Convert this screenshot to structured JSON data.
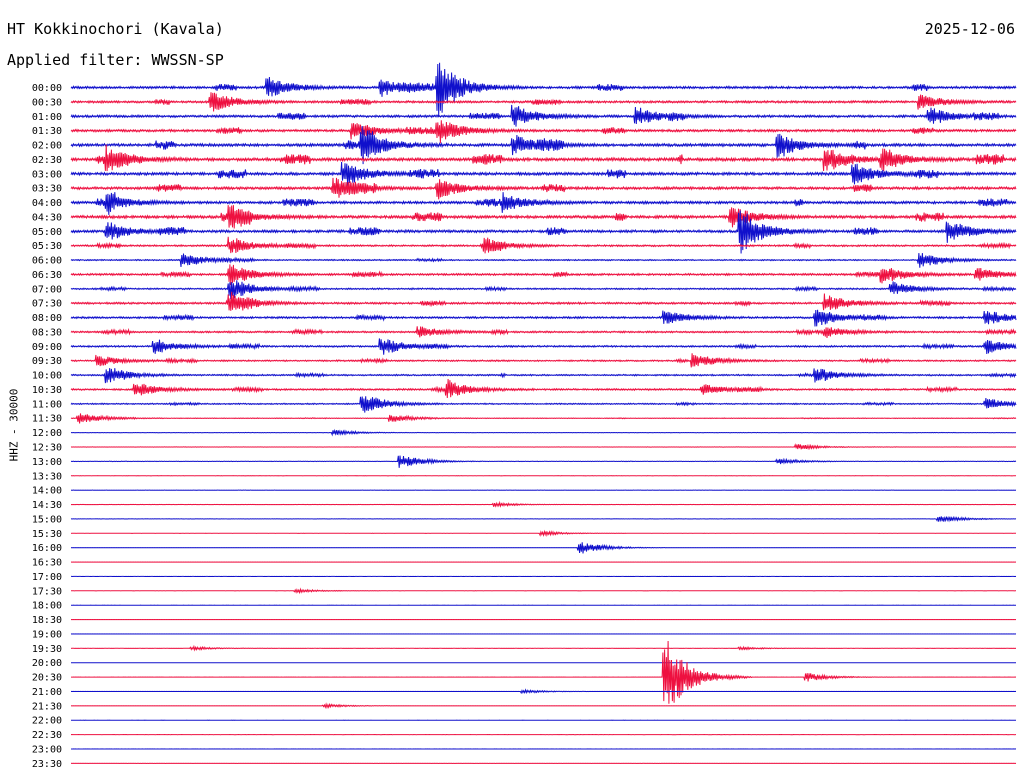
{
  "header": {
    "station": "HT Kokkinochori (Kavala)",
    "date": "2025-12-06",
    "filter": "Applied filter: WWSSN-SP",
    "channel": "HHZ - 30000"
  },
  "colors": {
    "even_rows": "#1010cc",
    "odd_rows": "#ee1040",
    "text": "#000000"
  },
  "chart_data": {
    "type": "line",
    "title": "HT Kokkinochori (Kavala)",
    "subtitle": "2025-12-06",
    "ylabel": "HHZ - 30000",
    "xlabel": "",
    "grid": false,
    "legend": "none",
    "rows": [
      {
        "time": "00:00",
        "level": 0.55,
        "events": [
          {
            "pos": 0.39,
            "amp": 1.6
          },
          {
            "pos": 0.21,
            "amp": 0.6
          },
          {
            "pos": 0.33,
            "amp": 0.5
          }
        ]
      },
      {
        "time": "00:30",
        "level": 0.5,
        "events": [
          {
            "pos": 0.15,
            "amp": 0.6
          },
          {
            "pos": 0.9,
            "amp": 0.4
          }
        ]
      },
      {
        "time": "01:00",
        "level": 0.55,
        "events": [
          {
            "pos": 0.47,
            "amp": 0.6
          },
          {
            "pos": 0.6,
            "amp": 0.5
          },
          {
            "pos": 0.91,
            "amp": 0.5
          }
        ]
      },
      {
        "time": "01:30",
        "level": 0.55,
        "events": [
          {
            "pos": 0.39,
            "amp": 0.7
          },
          {
            "pos": 0.3,
            "amp": 0.5
          }
        ]
      },
      {
        "time": "02:00",
        "level": 0.65,
        "events": [
          {
            "pos": 0.31,
            "amp": 0.9
          },
          {
            "pos": 0.47,
            "amp": 0.6
          },
          {
            "pos": 0.75,
            "amp": 0.7
          }
        ]
      },
      {
        "time": "02:30",
        "level": 0.7,
        "events": [
          {
            "pos": 0.04,
            "amp": 0.7
          },
          {
            "pos": 0.8,
            "amp": 0.7
          },
          {
            "pos": 0.86,
            "amp": 0.6
          }
        ]
      },
      {
        "time": "03:00",
        "level": 0.65,
        "events": [
          {
            "pos": 0.29,
            "amp": 0.7
          },
          {
            "pos": 0.83,
            "amp": 0.6
          }
        ]
      },
      {
        "time": "03:30",
        "level": 0.6,
        "events": [
          {
            "pos": 0.28,
            "amp": 0.6
          },
          {
            "pos": 0.39,
            "amp": 0.6
          }
        ]
      },
      {
        "time": "04:00",
        "level": 0.6,
        "events": [
          {
            "pos": 0.04,
            "amp": 0.5
          },
          {
            "pos": 0.46,
            "amp": 0.5
          }
        ]
      },
      {
        "time": "04:30",
        "level": 0.65,
        "events": [
          {
            "pos": 0.17,
            "amp": 0.6
          },
          {
            "pos": 0.7,
            "amp": 0.6
          }
        ]
      },
      {
        "time": "05:00",
        "level": 0.6,
        "events": [
          {
            "pos": 0.71,
            "amp": 1.2
          },
          {
            "pos": 0.93,
            "amp": 0.6
          },
          {
            "pos": 0.04,
            "amp": 0.5
          }
        ]
      },
      {
        "time": "05:30",
        "level": 0.4,
        "events": [
          {
            "pos": 0.17,
            "amp": 0.5
          },
          {
            "pos": 0.44,
            "amp": 0.4
          }
        ]
      },
      {
        "time": "06:00",
        "level": 0.3,
        "events": [
          {
            "pos": 0.12,
            "amp": 0.4
          },
          {
            "pos": 0.9,
            "amp": 0.4
          }
        ]
      },
      {
        "time": "06:30",
        "level": 0.45,
        "events": [
          {
            "pos": 0.17,
            "amp": 0.6
          },
          {
            "pos": 0.86,
            "amp": 0.5
          },
          {
            "pos": 0.96,
            "amp": 0.4
          }
        ]
      },
      {
        "time": "07:00",
        "level": 0.35,
        "events": [
          {
            "pos": 0.17,
            "amp": 0.6
          },
          {
            "pos": 0.87,
            "amp": 0.4
          }
        ]
      },
      {
        "time": "07:30",
        "level": 0.45,
        "events": [
          {
            "pos": 0.17,
            "amp": 0.6
          },
          {
            "pos": 0.8,
            "amp": 0.5
          }
        ]
      },
      {
        "time": "08:00",
        "level": 0.45,
        "events": [
          {
            "pos": 0.63,
            "amp": 0.4
          },
          {
            "pos": 0.79,
            "amp": 0.5
          },
          {
            "pos": 0.97,
            "amp": 0.4
          }
        ]
      },
      {
        "time": "08:30",
        "level": 0.4,
        "events": [
          {
            "pos": 0.37,
            "amp": 0.3
          },
          {
            "pos": 0.8,
            "amp": 0.3
          }
        ]
      },
      {
        "time": "09:00",
        "level": 0.4,
        "events": [
          {
            "pos": 0.33,
            "amp": 0.5
          },
          {
            "pos": 0.09,
            "amp": 0.4
          },
          {
            "pos": 0.97,
            "amp": 0.4
          }
        ]
      },
      {
        "time": "09:30",
        "level": 0.35,
        "events": [
          {
            "pos": 0.66,
            "amp": 0.4
          },
          {
            "pos": 0.03,
            "amp": 0.3
          }
        ]
      },
      {
        "time": "10:00",
        "level": 0.35,
        "events": [
          {
            "pos": 0.04,
            "amp": 0.4
          },
          {
            "pos": 0.79,
            "amp": 0.4
          }
        ]
      },
      {
        "time": "10:30",
        "level": 0.4,
        "events": [
          {
            "pos": 0.4,
            "amp": 0.5
          },
          {
            "pos": 0.07,
            "amp": 0.4
          },
          {
            "pos": 0.67,
            "amp": 0.3
          }
        ]
      },
      {
        "time": "11:00",
        "level": 0.3,
        "events": [
          {
            "pos": 0.31,
            "amp": 0.5
          },
          {
            "pos": 0.97,
            "amp": 0.3
          }
        ]
      },
      {
        "time": "11:30",
        "level": 0.15,
        "events": [
          {
            "pos": 0.01,
            "amp": 0.3
          },
          {
            "pos": 0.34,
            "amp": 0.2
          }
        ]
      },
      {
        "time": "12:00",
        "level": 0.08,
        "events": [
          {
            "pos": 0.28,
            "amp": 0.15
          }
        ]
      },
      {
        "time": "12:30",
        "level": 0.08,
        "events": [
          {
            "pos": 0.77,
            "amp": 0.15
          }
        ]
      },
      {
        "time": "13:00",
        "level": 0.1,
        "events": [
          {
            "pos": 0.35,
            "amp": 0.35
          },
          {
            "pos": 0.75,
            "amp": 0.15
          }
        ]
      },
      {
        "time": "13:30",
        "level": 0.06,
        "events": []
      },
      {
        "time": "14:00",
        "level": 0.05,
        "events": []
      },
      {
        "time": "14:30",
        "level": 0.05,
        "events": [
          {
            "pos": 0.45,
            "amp": 0.12
          }
        ]
      },
      {
        "time": "15:00",
        "level": 0.05,
        "events": [
          {
            "pos": 0.92,
            "amp": 0.2
          }
        ]
      },
      {
        "time": "15:30",
        "level": 0.04,
        "events": [
          {
            "pos": 0.5,
            "amp": 0.12
          }
        ]
      },
      {
        "time": "16:00",
        "level": 0.04,
        "events": [
          {
            "pos": 0.54,
            "amp": 0.35
          }
        ]
      },
      {
        "time": "16:30",
        "level": 0.03,
        "events": []
      },
      {
        "time": "17:00",
        "level": 0.03,
        "events": []
      },
      {
        "time": "17:30",
        "level": 0.03,
        "events": [
          {
            "pos": 0.24,
            "amp": 0.1
          }
        ]
      },
      {
        "time": "18:00",
        "level": 0.02,
        "events": []
      },
      {
        "time": "18:30",
        "level": 0.02,
        "events": []
      },
      {
        "time": "19:00",
        "level": 0.02,
        "events": []
      },
      {
        "time": "19:30",
        "level": 0.03,
        "events": [
          {
            "pos": 0.13,
            "amp": 0.1
          },
          {
            "pos": 0.71,
            "amp": 0.08
          }
        ]
      },
      {
        "time": "20:00",
        "level": 0.02,
        "events": []
      },
      {
        "time": "20:30",
        "level": 0.03,
        "events": [
          {
            "pos": 0.63,
            "amp": 2.2
          },
          {
            "pos": 0.78,
            "amp": 0.25
          }
        ]
      },
      {
        "time": "21:00",
        "level": 0.02,
        "events": [
          {
            "pos": 0.48,
            "amp": 0.1
          }
        ]
      },
      {
        "time": "21:30",
        "level": 0.03,
        "events": [
          {
            "pos": 0.27,
            "amp": 0.1
          }
        ]
      },
      {
        "time": "22:00",
        "level": 0.04,
        "events": []
      },
      {
        "time": "22:30",
        "level": 0.03,
        "events": []
      },
      {
        "time": "23:00",
        "level": 0.03,
        "events": []
      },
      {
        "time": "23:30",
        "level": 0.05,
        "events": []
      }
    ]
  }
}
